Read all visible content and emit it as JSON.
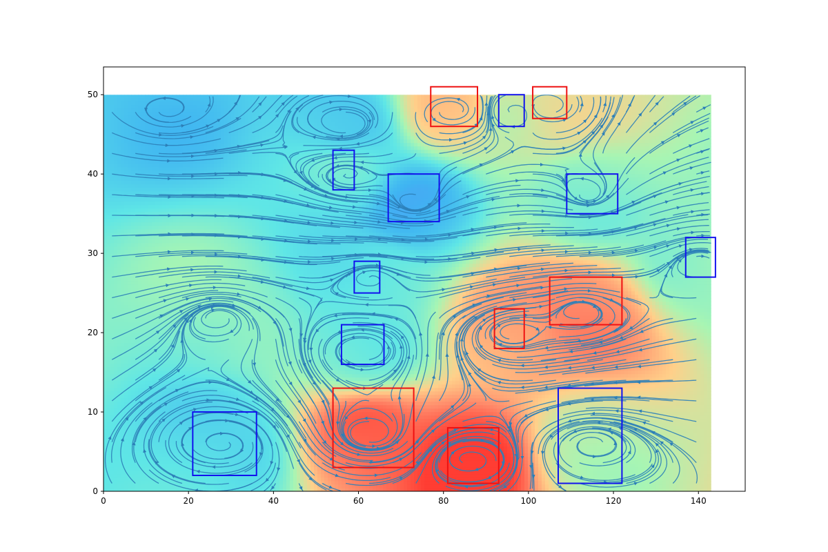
{
  "chart_data": {
    "type": "streamplot",
    "title": "",
    "xlabel": "",
    "ylabel": "",
    "xlim": [
      0,
      151
    ],
    "ylim": [
      0,
      53.5
    ],
    "field_extent": {
      "x": [
        0,
        143
      ],
      "y": [
        0,
        50
      ]
    },
    "x_ticks": [
      0,
      20,
      40,
      60,
      80,
      100,
      120,
      140
    ],
    "y_ticks": [
      0,
      10,
      20,
      30,
      40,
      50
    ],
    "grid": false,
    "colormap": [
      "#8a4dff",
      "#3fb4f2",
      "#5fe6e6",
      "#a8f5b3",
      "#ffd08a",
      "#ff8a6a",
      "#ff3d33"
    ],
    "streamline_color": "#2c7fb8",
    "vortices": [
      {
        "x": 73,
        "y": 36,
        "level": 0.0
      },
      {
        "x": 57,
        "y": 46,
        "level": 0.05
      },
      {
        "x": 15,
        "y": 48,
        "level": 0.1
      },
      {
        "x": 28,
        "y": 6,
        "level": 0.15
      },
      {
        "x": 61,
        "y": 18,
        "level": 0.2
      },
      {
        "x": 63,
        "y": 27,
        "level": 0.25
      },
      {
        "x": 57,
        "y": 40,
        "level": 0.25
      },
      {
        "x": 27,
        "y": 22,
        "level": 0.35
      },
      {
        "x": 114,
        "y": 37,
        "level": 0.3
      },
      {
        "x": 140,
        "y": 29,
        "level": 0.35
      },
      {
        "x": 115,
        "y": 6,
        "level": 0.45
      },
      {
        "x": 97,
        "y": 48,
        "level": 0.5
      },
      {
        "x": 104,
        "y": 48.5,
        "level": 0.55
      },
      {
        "x": 96,
        "y": 20,
        "level": 0.75
      },
      {
        "x": 82,
        "y": 48,
        "level": 0.7
      },
      {
        "x": 112,
        "y": 23,
        "level": 0.82
      },
      {
        "x": 63,
        "y": 7,
        "level": 0.92
      },
      {
        "x": 86,
        "y": 4,
        "level": 1.0
      }
    ],
    "boxes": [
      {
        "color": "red",
        "x0": 77,
        "x1": 88,
        "y0": 46,
        "y1": 51
      },
      {
        "color": "blue",
        "x0": 93,
        "x1": 99,
        "y0": 46,
        "y1": 50
      },
      {
        "color": "red",
        "x0": 101,
        "x1": 109,
        "y0": 47,
        "y1": 51
      },
      {
        "color": "blue",
        "x0": 54,
        "x1": 59,
        "y0": 38,
        "y1": 43
      },
      {
        "color": "blue",
        "x0": 67,
        "x1": 79,
        "y0": 34,
        "y1": 40
      },
      {
        "color": "blue",
        "x0": 109,
        "x1": 121,
        "y0": 35,
        "y1": 40
      },
      {
        "color": "blue",
        "x0": 137,
        "x1": 144,
        "y0": 27,
        "y1": 32
      },
      {
        "color": "blue",
        "x0": 59,
        "x1": 65,
        "y0": 25,
        "y1": 29
      },
      {
        "color": "red",
        "x0": 105,
        "x1": 122,
        "y0": 21,
        "y1": 27
      },
      {
        "color": "red",
        "x0": 92,
        "x1": 99,
        "y0": 18,
        "y1": 23
      },
      {
        "color": "blue",
        "x0": 56,
        "x1": 66,
        "y0": 16,
        "y1": 21
      },
      {
        "color": "red",
        "x0": 54,
        "x1": 73,
        "y0": 3,
        "y1": 13
      },
      {
        "color": "red",
        "x0": 81,
        "x1": 93,
        "y0": 1,
        "y1": 8
      },
      {
        "color": "blue",
        "x0": 107,
        "x1": 122,
        "y0": 1,
        "y1": 13
      },
      {
        "color": "blue",
        "x0": 21,
        "x1": 36,
        "y0": 2,
        "y1": 10
      }
    ]
  }
}
